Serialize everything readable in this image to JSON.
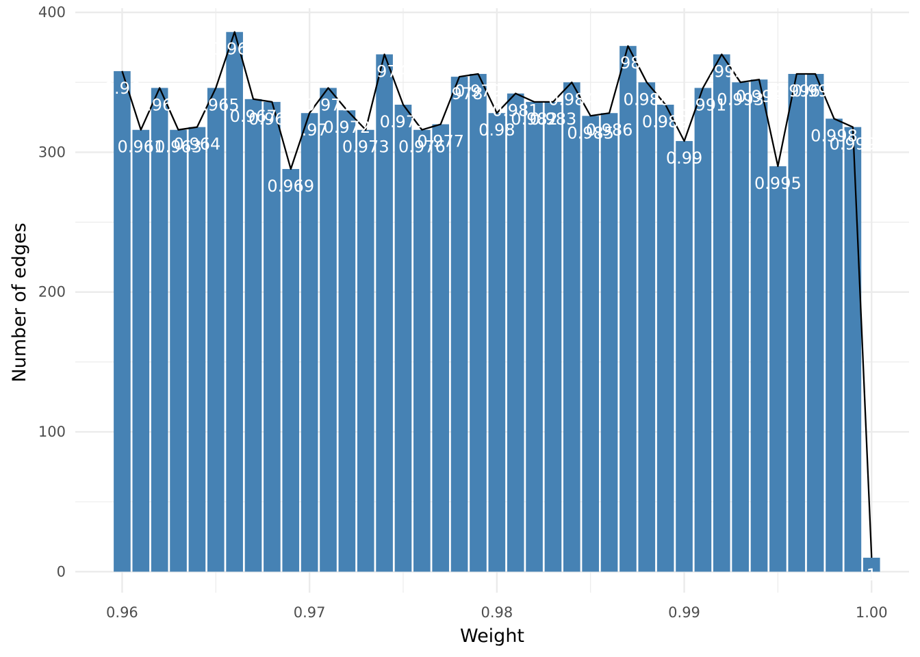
{
  "chart_data": {
    "type": "bar",
    "title": "",
    "xlabel": "Weight",
    "ylabel": "Number of edges",
    "xlim": [
      0.9575,
      1.002
    ],
    "ylim": [
      -15,
      403
    ],
    "x_ticks": [
      {
        "value": 0.96,
        "label": "0.96"
      },
      {
        "value": 0.97,
        "label": "0.97"
      },
      {
        "value": 0.98,
        "label": "0.98"
      },
      {
        "value": 0.99,
        "label": "0.99"
      },
      {
        "value": 1.0,
        "label": "1.00"
      }
    ],
    "y_ticks": [
      {
        "value": 0,
        "label": "0"
      },
      {
        "value": 100,
        "label": "100"
      },
      {
        "value": 200,
        "label": "200"
      },
      {
        "value": 300,
        "label": "300"
      },
      {
        "value": 400,
        "label": "400"
      }
    ],
    "bar_width": 0.0009,
    "x": [
      0.96,
      0.961,
      0.962,
      0.963,
      0.964,
      0.965,
      0.966,
      0.967,
      0.968,
      0.969,
      0.97,
      0.971,
      0.972,
      0.973,
      0.974,
      0.975,
      0.976,
      0.977,
      0.978,
      0.979,
      0.98,
      0.981,
      0.982,
      0.983,
      0.984,
      0.985,
      0.986,
      0.987,
      0.988,
      0.989,
      0.99,
      0.991,
      0.992,
      0.993,
      0.994,
      0.995,
      0.996,
      0.997,
      0.998,
      0.999,
      1.0
    ],
    "values": [
      358,
      316,
      346,
      316,
      318,
      346,
      386,
      338,
      336,
      288,
      328,
      346,
      330,
      316,
      370,
      334,
      316,
      320,
      354,
      356,
      328,
      342,
      336,
      336,
      350,
      326,
      328,
      376,
      350,
      334,
      308,
      346,
      370,
      350,
      352,
      290,
      356,
      356,
      324,
      318,
      10
    ],
    "labels": [
      "0.96",
      "0.961",
      "0.962",
      "0.963",
      "0.964",
      "0.965",
      "0.966",
      "0.967",
      "0.968",
      "0.969",
      "0.97",
      "0.971",
      "0.972",
      "0.973",
      "0.974",
      "0.975",
      "0.976",
      "0.977",
      "0.978",
      "0.979",
      "0.98",
      "0.981",
      "0.982",
      "0.983",
      "0.984",
      "0.985",
      "0.986",
      "0.987",
      "0.988",
      "0.989",
      "0.99",
      "0.991",
      "0.992",
      "0.993",
      "0.994",
      "0.995",
      "0.996",
      "0.997",
      "0.998",
      "0.999",
      "1"
    ],
    "grid": true,
    "bar_color": "#4682b4",
    "line_color": "#000000",
    "label_color": "#ffffff",
    "grid_color": "#ebebeb"
  }
}
